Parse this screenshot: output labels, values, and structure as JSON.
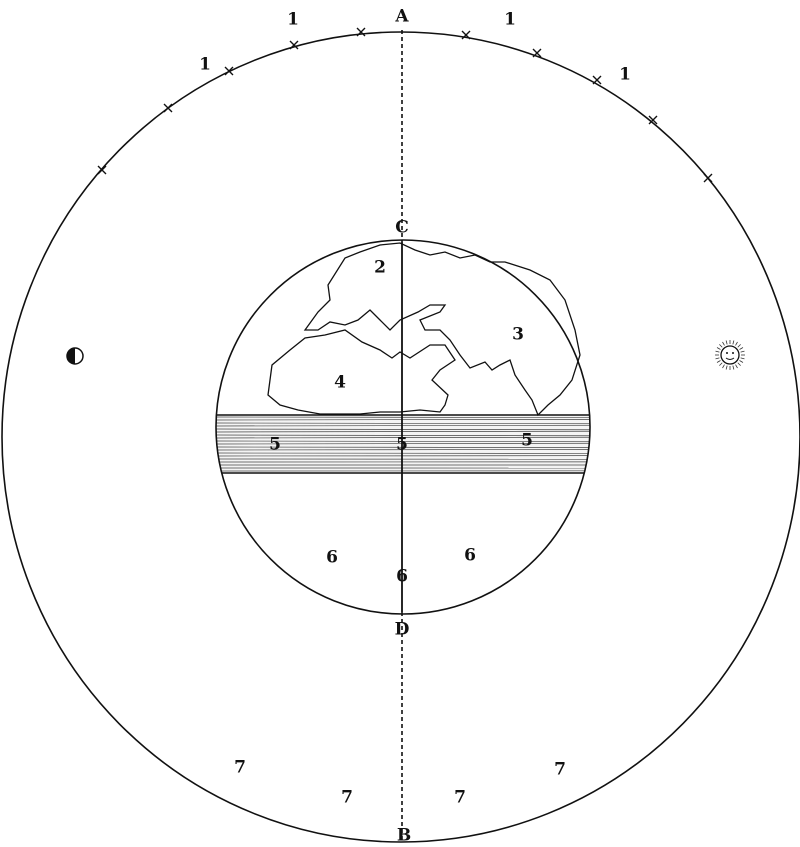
{
  "labels": {
    "top": "A",
    "bottom": "B",
    "earth_top": "C",
    "earth_bottom": "D",
    "spheres": [
      "1",
      "1",
      "1",
      "1"
    ],
    "land": [
      "2",
      "3",
      "4"
    ],
    "zone": [
      "5",
      "5",
      "5"
    ],
    "below": [
      "6",
      "6",
      "6"
    ],
    "outer": [
      "7",
      "7",
      "7",
      "7"
    ]
  }
}
